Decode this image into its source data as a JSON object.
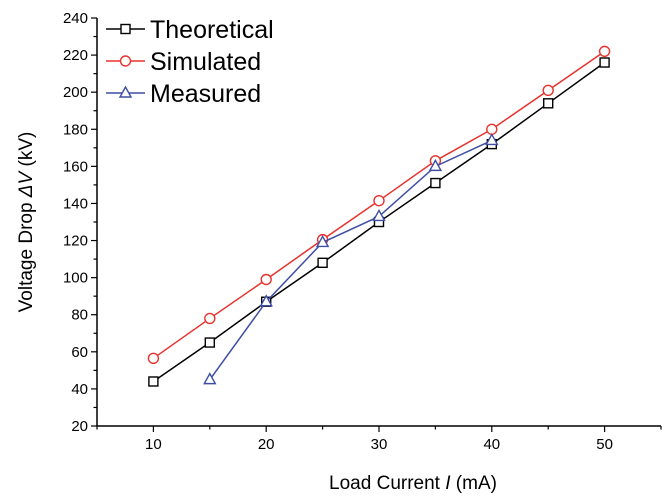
{
  "chart_data": {
    "type": "line",
    "xlabel": {
      "prefix": "Load Current ",
      "var": "I",
      "suffix": " (mA)"
    },
    "ylabel": {
      "prefix": "Voltage Drop ",
      "var": "ΔV",
      "suffix": " (kV)"
    },
    "xlim": [
      5,
      55
    ],
    "ylim": [
      20,
      240
    ],
    "xticks": [
      10,
      20,
      30,
      40,
      50
    ],
    "yticks": [
      20,
      40,
      60,
      80,
      100,
      120,
      140,
      160,
      180,
      200,
      220,
      240
    ],
    "grid": false,
    "legend_position": "top-left",
    "series": [
      {
        "name": "Theoretical",
        "marker": "square",
        "color": "#000000",
        "x": [
          10,
          15,
          20,
          25,
          30,
          35,
          40,
          45,
          50
        ],
        "y": [
          44,
          65,
          87,
          108,
          130,
          151,
          172,
          194,
          216
        ]
      },
      {
        "name": "Simulated",
        "marker": "circle",
        "color": "#e8322e",
        "x": [
          10,
          15,
          20,
          25,
          30,
          35,
          40,
          45,
          50
        ],
        "y": [
          56.5,
          78,
          99,
          120.5,
          141.5,
          163,
          180,
          201,
          222
        ]
      },
      {
        "name": "Measured",
        "marker": "triangle",
        "color": "#3e4ea3",
        "x": [
          15,
          20,
          25,
          30,
          35,
          40
        ],
        "y": [
          45,
          87,
          119,
          133,
          160,
          174
        ]
      }
    ]
  }
}
